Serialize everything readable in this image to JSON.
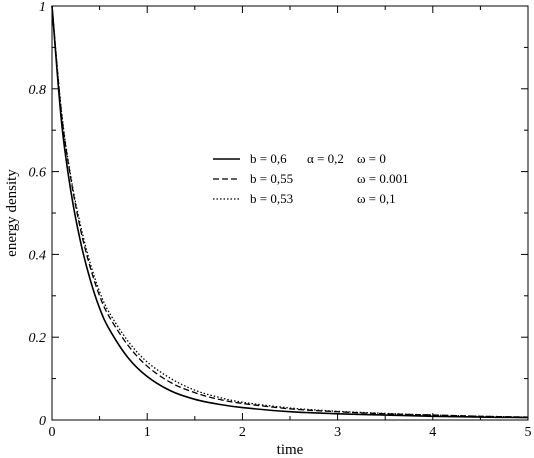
{
  "chart_data": {
    "type": "line",
    "title": "",
    "xlabel": "time",
    "ylabel": "energy density",
    "xlim": [
      0,
      5
    ],
    "ylim": [
      0,
      1
    ],
    "x_ticks": [
      0,
      1,
      2,
      3,
      4,
      5
    ],
    "x_tick_labels": [
      "0",
      "1",
      "2",
      "3",
      "4",
      "5"
    ],
    "y_ticks": [
      0,
      0.2,
      0.4,
      0.6,
      0.8,
      1
    ],
    "y_tick_labels": [
      "0",
      "0.2",
      "0.4",
      "0.6",
      "0.8",
      "1"
    ],
    "grid": false,
    "legend_position": "center-right",
    "series": [
      {
        "name": "b = 0,6",
        "params": [
          "α = 0,2",
          "ω = 0"
        ],
        "style": "solid",
        "x": [
          0,
          0.1,
          0.2,
          0.3,
          0.4,
          0.5,
          0.6,
          0.8,
          1.0,
          1.25,
          1.5,
          1.75,
          2.0,
          2.5,
          3.0,
          3.5,
          4.0,
          4.5,
          5.0
        ],
        "y": [
          1.0,
          0.72,
          0.55,
          0.43,
          0.34,
          0.27,
          0.22,
          0.15,
          0.105,
          0.07,
          0.05,
          0.038,
          0.03,
          0.02,
          0.015,
          0.012,
          0.009,
          0.007,
          0.006
        ]
      },
      {
        "name": "b = 0,55",
        "params": [
          "ω = 0.001"
        ],
        "style": "dashed",
        "x": [
          0,
          0.1,
          0.2,
          0.3,
          0.4,
          0.5,
          0.6,
          0.8,
          1.0,
          1.25,
          1.5,
          1.75,
          2.0,
          2.5,
          3.0,
          3.5,
          4.0,
          4.5,
          5.0
        ],
        "y": [
          1.0,
          0.74,
          0.58,
          0.46,
          0.37,
          0.3,
          0.25,
          0.18,
          0.13,
          0.09,
          0.066,
          0.05,
          0.04,
          0.027,
          0.02,
          0.015,
          0.012,
          0.009,
          0.007
        ]
      },
      {
        "name": "b = 0,53",
        "params": [
          "ω = 0,1"
        ],
        "style": "dotted",
        "x": [
          0,
          0.1,
          0.2,
          0.3,
          0.4,
          0.5,
          0.6,
          0.8,
          1.0,
          1.25,
          1.5,
          1.75,
          2.0,
          2.5,
          3.0,
          3.5,
          4.0,
          4.5,
          5.0
        ],
        "y": [
          1.0,
          0.745,
          0.585,
          0.47,
          0.38,
          0.31,
          0.26,
          0.19,
          0.14,
          0.1,
          0.072,
          0.055,
          0.043,
          0.029,
          0.021,
          0.016,
          0.012,
          0.009,
          0.007
        ]
      }
    ]
  }
}
